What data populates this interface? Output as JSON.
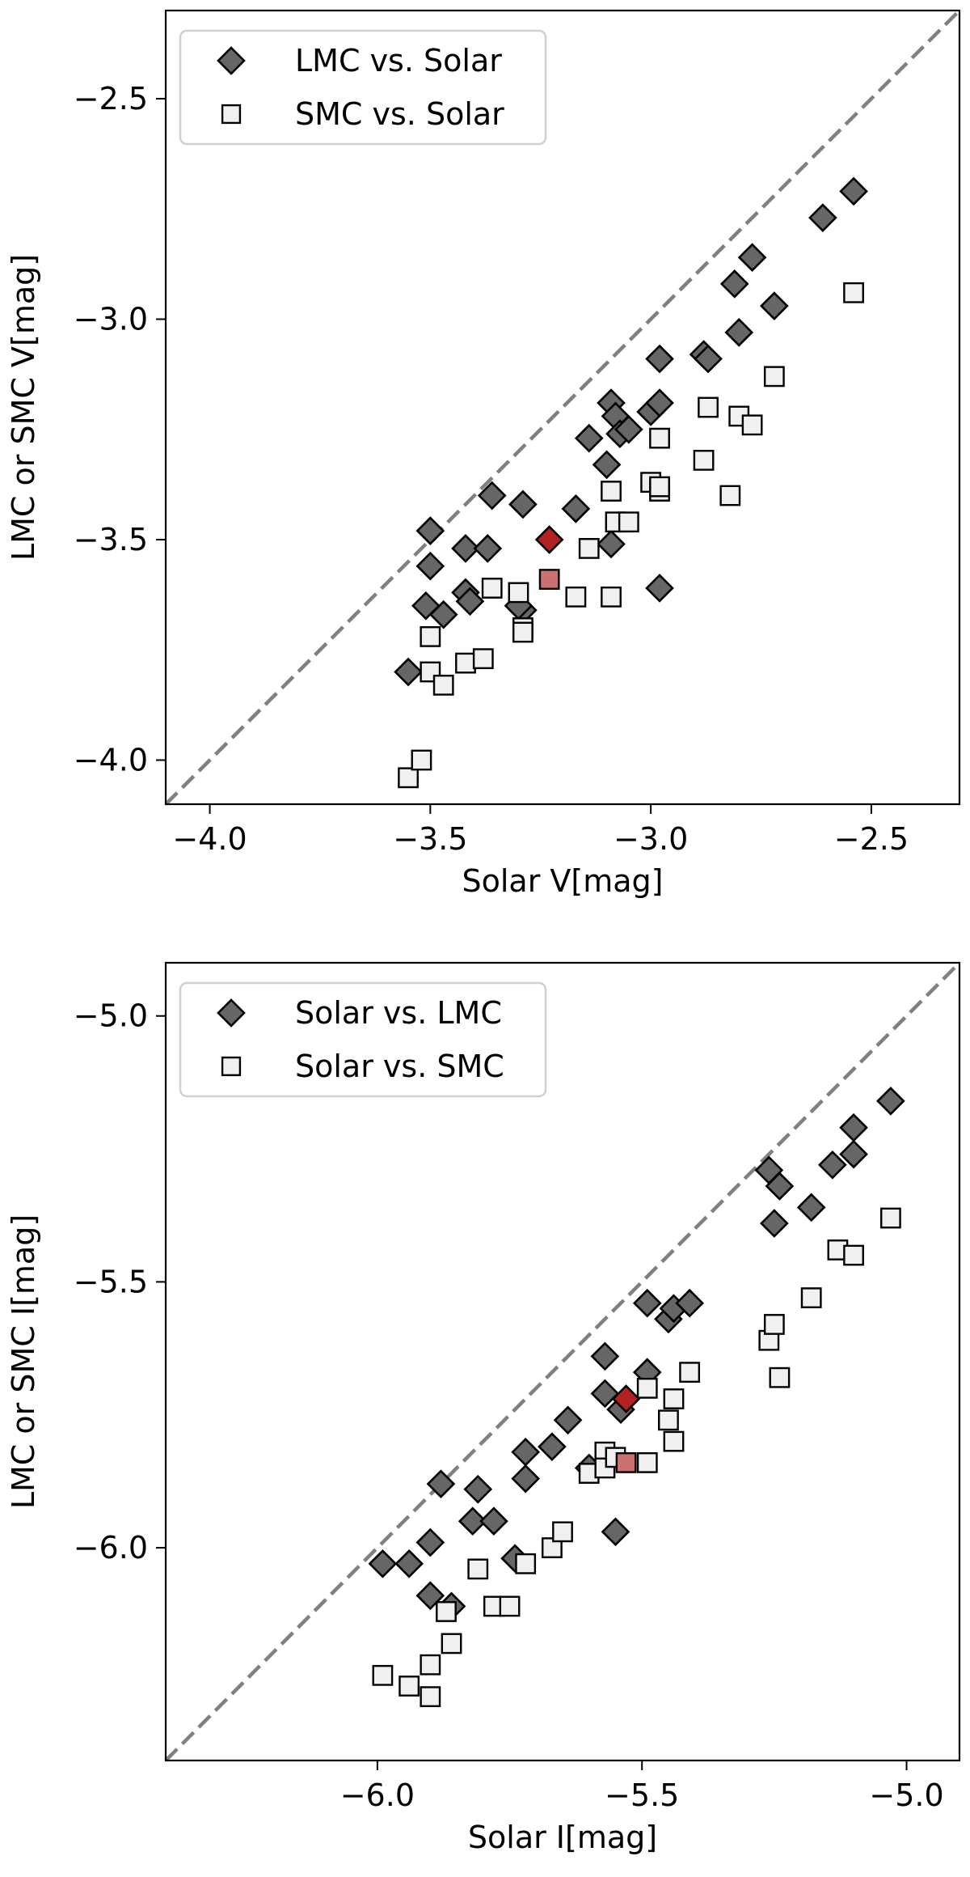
{
  "chart_data": [
    {
      "type": "scatter",
      "xlabel": "Solar V[mag]",
      "ylabel": "LMC or SMC V[mag]",
      "xlim": [
        -4.1,
        -2.3
      ],
      "ylim": [
        -4.1,
        -2.3
      ],
      "x_ticks": [
        -4.0,
        -3.5,
        -3.0,
        -2.5
      ],
      "y_ticks": [
        -4.0,
        -3.5,
        -3.0,
        -2.5
      ],
      "x_tick_labels": [
        "−4.0",
        "−3.5",
        "−3.0",
        "−2.5"
      ],
      "y_tick_labels": [
        "−4.0",
        "−3.5",
        "−3.0",
        "−2.5"
      ],
      "legend_position": "top-left",
      "one_to_one_line": true,
      "series": [
        {
          "name": "LMC vs. Solar",
          "marker": "diamond",
          "color": "#666666",
          "points": [
            [
              -3.55,
              -3.8
            ],
            [
              -3.51,
              -3.65
            ],
            [
              -3.5,
              -3.48
            ],
            [
              -3.5,
              -3.56
            ],
            [
              -3.47,
              -3.67
            ],
            [
              -3.42,
              -3.52
            ],
            [
              -3.42,
              -3.62
            ],
            [
              -3.41,
              -3.64
            ],
            [
              -3.37,
              -3.52
            ],
            [
              -3.36,
              -3.4
            ],
            [
              -3.29,
              -3.42
            ],
            [
              -3.29,
              -3.66
            ],
            [
              -3.3,
              -3.65
            ],
            [
              -3.17,
              -3.43
            ],
            [
              -3.14,
              -3.27
            ],
            [
              -3.1,
              -3.33
            ],
            [
              -3.09,
              -3.51
            ],
            [
              -3.09,
              -3.19
            ],
            [
              -3.08,
              -3.22
            ],
            [
              -3.07,
              -3.26
            ],
            [
              -3.05,
              -3.25
            ],
            [
              -3.0,
              -3.21
            ],
            [
              -2.98,
              -3.19
            ],
            [
              -2.98,
              -3.61
            ],
            [
              -2.98,
              -3.09
            ],
            [
              -2.88,
              -3.08
            ],
            [
              -2.87,
              -3.09
            ],
            [
              -2.8,
              -3.03
            ],
            [
              -2.81,
              -2.92
            ],
            [
              -2.77,
              -2.86
            ],
            [
              -2.72,
              -2.97
            ],
            [
              -2.61,
              -2.77
            ],
            [
              -2.54,
              -2.71
            ]
          ]
        },
        {
          "name": "SMC vs. Solar",
          "marker": "square",
          "color": "#f0f0f0",
          "points": [
            [
              -3.55,
              -4.04
            ],
            [
              -3.52,
              -4.0
            ],
            [
              -3.5,
              -3.72
            ],
            [
              -3.5,
              -3.8
            ],
            [
              -3.47,
              -3.83
            ],
            [
              -3.42,
              -3.78
            ],
            [
              -3.38,
              -3.77
            ],
            [
              -3.36,
              -3.61
            ],
            [
              -3.3,
              -3.62
            ],
            [
              -3.29,
              -3.7
            ],
            [
              -3.29,
              -3.71
            ],
            [
              -3.17,
              -3.63
            ],
            [
              -3.14,
              -3.52
            ],
            [
              -3.09,
              -3.63
            ],
            [
              -3.09,
              -3.39
            ],
            [
              -3.08,
              -3.46
            ],
            [
              -3.05,
              -3.46
            ],
            [
              -3.0,
              -3.37
            ],
            [
              -2.98,
              -3.39
            ],
            [
              -2.98,
              -3.38
            ],
            [
              -2.98,
              -3.27
            ],
            [
              -2.88,
              -3.32
            ],
            [
              -2.87,
              -3.2
            ],
            [
              -2.82,
              -3.4
            ],
            [
              -2.8,
              -3.22
            ],
            [
              -2.77,
              -3.24
            ],
            [
              -2.72,
              -3.13
            ],
            [
              -2.54,
              -2.94
            ]
          ]
        },
        {
          "name": "",
          "marker": "diamond",
          "color": "#b22222",
          "points": [
            [
              -3.23,
              -3.5
            ]
          ]
        },
        {
          "name": "",
          "marker": "square",
          "color": "#cd7070",
          "points": [
            [
              -3.23,
              -3.59
            ]
          ]
        }
      ]
    },
    {
      "type": "scatter",
      "xlabel": "Solar I[mag]",
      "ylabel": "LMC or SMC I[mag]",
      "xlim": [
        -6.4,
        -4.9
      ],
      "ylim": [
        -6.4,
        -4.9
      ],
      "x_ticks": [
        -6.0,
        -5.5,
        -5.0
      ],
      "y_ticks": [
        -6.0,
        -5.5,
        -5.0
      ],
      "x_tick_labels": [
        "−6.0",
        "−5.5",
        "−5.0"
      ],
      "y_tick_labels": [
        "−6.0",
        "−5.5",
        "−5.0"
      ],
      "legend_position": "top-left",
      "one_to_one_line": true,
      "series": [
        {
          "name": "Solar vs. LMC",
          "marker": "diamond",
          "color": "#666666",
          "points": [
            [
              -5.99,
              -6.03
            ],
            [
              -5.94,
              -6.03
            ],
            [
              -5.9,
              -5.99
            ],
            [
              -5.88,
              -5.88
            ],
            [
              -5.9,
              -6.09
            ],
            [
              -5.86,
              -6.11
            ],
            [
              -5.82,
              -5.95
            ],
            [
              -5.81,
              -5.89
            ],
            [
              -5.78,
              -5.95
            ],
            [
              -5.74,
              -6.02
            ],
            [
              -5.72,
              -5.82
            ],
            [
              -5.72,
              -5.87
            ],
            [
              -5.67,
              -5.81
            ],
            [
              -5.64,
              -5.76
            ],
            [
              -5.6,
              -5.85
            ],
            [
              -5.57,
              -5.64
            ],
            [
              -5.57,
              -5.71
            ],
            [
              -5.54,
              -5.74
            ],
            [
              -5.55,
              -5.97
            ],
            [
              -5.49,
              -5.54
            ],
            [
              -5.49,
              -5.67
            ],
            [
              -5.45,
              -5.57
            ],
            [
              -5.44,
              -5.55
            ],
            [
              -5.41,
              -5.54
            ],
            [
              -5.26,
              -5.29
            ],
            [
              -5.25,
              -5.39
            ],
            [
              -5.24,
              -5.32
            ],
            [
              -5.18,
              -5.36
            ],
            [
              -5.14,
              -5.28
            ],
            [
              -5.1,
              -5.21
            ],
            [
              -5.1,
              -5.26
            ],
            [
              -5.03,
              -5.16
            ]
          ]
        },
        {
          "name": "Solar vs. SMC",
          "marker": "square",
          "color": "#f0f0f0",
          "points": [
            [
              -5.99,
              -6.24
            ],
            [
              -5.94,
              -6.26
            ],
            [
              -5.9,
              -6.22
            ],
            [
              -5.9,
              -6.28
            ],
            [
              -5.87,
              -6.12
            ],
            [
              -5.86,
              -6.18
            ],
            [
              -5.81,
              -6.04
            ],
            [
              -5.78,
              -6.11
            ],
            [
              -5.75,
              -6.11
            ],
            [
              -5.72,
              -6.03
            ],
            [
              -5.67,
              -6.0
            ],
            [
              -5.65,
              -5.97
            ],
            [
              -5.6,
              -5.86
            ],
            [
              -5.57,
              -5.82
            ],
            [
              -5.57,
              -5.85
            ],
            [
              -5.55,
              -5.83
            ],
            [
              -5.49,
              -5.7
            ],
            [
              -5.49,
              -5.84
            ],
            [
              -5.45,
              -5.76
            ],
            [
              -5.44,
              -5.72
            ],
            [
              -5.44,
              -5.8
            ],
            [
              -5.41,
              -5.67
            ],
            [
              -5.26,
              -5.61
            ],
            [
              -5.25,
              -5.58
            ],
            [
              -5.24,
              -5.68
            ],
            [
              -5.18,
              -5.53
            ],
            [
              -5.13,
              -5.44
            ],
            [
              -5.1,
              -5.45
            ],
            [
              -5.03,
              -5.38
            ]
          ]
        },
        {
          "name": "",
          "marker": "diamond",
          "color": "#b22222",
          "points": [
            [
              -5.53,
              -5.72
            ]
          ]
        },
        {
          "name": "",
          "marker": "square",
          "color": "#cd7070",
          "points": [
            [
              -5.53,
              -5.84
            ]
          ]
        }
      ]
    }
  ]
}
